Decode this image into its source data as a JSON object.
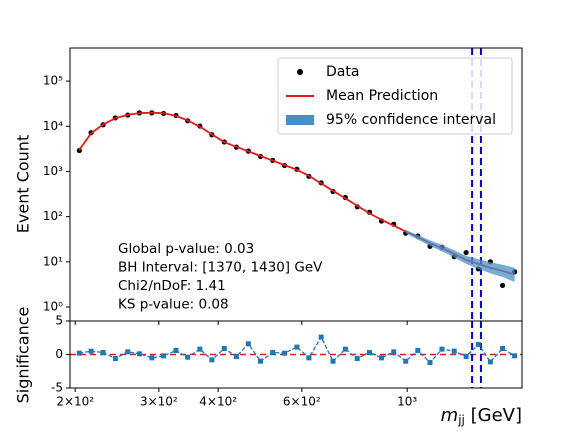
{
  "chart_data": [
    {
      "type": "line",
      "log_x": true,
      "log_y": true,
      "ylabel": "Event Count",
      "x": [
        204,
        216,
        229,
        243,
        258,
        273,
        290,
        307,
        326,
        345,
        366,
        388,
        412,
        437,
        463,
        491,
        521,
        552,
        586,
        621,
        659,
        698,
        741,
        785,
        833,
        883,
        937,
        993,
        1053,
        1117,
        1184,
        1256,
        1331,
        1412,
        1497,
        1588,
        1684
      ],
      "series": [
        {
          "name": "Data",
          "style": "markers",
          "color": "#000000",
          "values": [
            2900,
            7200,
            10800,
            15300,
            17700,
            19800,
            19800,
            19200,
            17300,
            13200,
            10100,
            6500,
            4500,
            3450,
            2820,
            2150,
            1760,
            1350,
            1120,
            780,
            560,
            360,
            265,
            165,
            125,
            80,
            68,
            43,
            37,
            22,
            21,
            13,
            16,
            7,
            10,
            3,
            6
          ]
        },
        {
          "name": "Mean Prediction",
          "style": "line",
          "color": "#e41a1c",
          "values": [
            3000,
            7000,
            11000,
            15000,
            18000,
            19500,
            20000,
            19500,
            17000,
            13500,
            9800,
            6600,
            4450,
            3510,
            2790,
            2200,
            1740,
            1380,
            1090,
            800,
            540,
            373,
            254,
            174,
            118,
            85,
            63,
            47,
            35,
            26,
            20,
            15,
            11,
            9,
            7.4,
            6.3,
            5.2
          ]
        },
        {
          "name": "95% confidence interval",
          "style": "band",
          "color": "#4a90c8",
          "lower": [
            null,
            null,
            null,
            null,
            null,
            null,
            null,
            null,
            null,
            null,
            null,
            null,
            null,
            null,
            null,
            null,
            null,
            null,
            null,
            null,
            null,
            null,
            null,
            null,
            null,
            null,
            null,
            43,
            31,
            22.5,
            17,
            12.5,
            9,
            7,
            5.6,
            4.6,
            3.6
          ],
          "upper": [
            null,
            null,
            null,
            null,
            null,
            null,
            null,
            null,
            null,
            null,
            null,
            null,
            null,
            null,
            null,
            null,
            null,
            null,
            null,
            null,
            null,
            null,
            null,
            null,
            null,
            null,
            null,
            51,
            39,
            30,
            23.5,
            18,
            13.5,
            11.5,
            9.8,
            8.6,
            7.4
          ]
        }
      ],
      "xlim": [
        195,
        1745
      ],
      "xticks": [
        200,
        300,
        400,
        600,
        1000
      ],
      "ylim": [
        0.49,
        540000
      ],
      "yticks": [
        {
          "value": 1,
          "label": "10⁰"
        },
        {
          "value": 10,
          "label": "10¹"
        },
        {
          "value": 100,
          "label": "10²"
        },
        {
          "value": 1000,
          "label": "10³"
        },
        {
          "value": 10000,
          "label": "10⁴"
        },
        {
          "value": 100000,
          "label": "10⁵"
        }
      ],
      "vlines": [
        1370,
        1430
      ],
      "vline_color": "#0000cc",
      "legend": "upper right",
      "annotations": [
        "Global p-value: 0.03",
        "BH Interval: [1370, 1430] GeV",
        "Chi2/nDoF: 1.41",
        "KS p-value: 0.08"
      ]
    },
    {
      "type": "line",
      "log_x": true,
      "ylabel": "Significance",
      "xlabel": "m",
      "xlabel_sub": "jj",
      "xlabel_unit": " [GeV]",
      "x": [
        204,
        216,
        229,
        243,
        258,
        273,
        290,
        307,
        326,
        345,
        366,
        388,
        412,
        437,
        463,
        491,
        521,
        552,
        586,
        621,
        659,
        698,
        741,
        785,
        833,
        883,
        937,
        993,
        1053,
        1117,
        1184,
        1256,
        1331,
        1412,
        1497,
        1588,
        1684
      ],
      "series": [
        {
          "style": "markers-dashed",
          "color": "#1f77b4",
          "values": [
            0.2,
            0.5,
            0.3,
            -0.6,
            0.4,
            0.1,
            -0.5,
            -0.2,
            0.6,
            -0.4,
            0.8,
            -0.8,
            0.9,
            -0.3,
            1.6,
            -1.0,
            0.3,
            0.2,
            1.1,
            -0.5,
            2.6,
            -1.0,
            0.8,
            -0.6,
            0.3,
            -0.5,
            0.4,
            -1.0,
            0.6,
            -1.2,
            0.8,
            0.5,
            -0.3,
            1.5,
            -1.1,
            0.9,
            -0.2
          ]
        }
      ],
      "hline": 0,
      "hline_color": "#e41a1c",
      "xlim": [
        195,
        1745
      ],
      "xticks": [
        {
          "value": 200,
          "label": "2×10²"
        },
        {
          "value": 300,
          "label": "3×10²"
        },
        {
          "value": 400,
          "label": "4×10²"
        },
        {
          "value": 600,
          "label": "6×10²"
        },
        {
          "value": 1000,
          "label": "10³"
        }
      ],
      "ylim": [
        -5,
        5
      ],
      "yticks": [
        -5,
        0,
        5
      ],
      "vlines": [
        1370,
        1430
      ],
      "vline_color": "#0000cc"
    }
  ]
}
